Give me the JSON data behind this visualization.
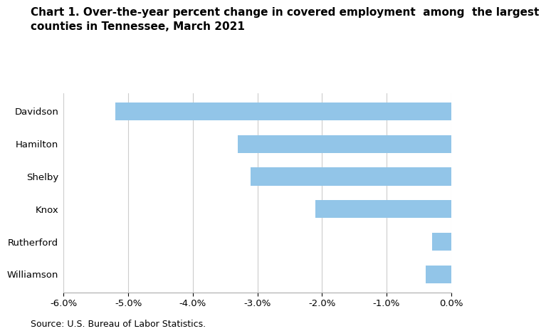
{
  "title": "Chart 1. Over-the-year percent change in covered employment  among  the largest\ncounties in Tennessee, March 2021",
  "categories": [
    "Davidson",
    "Hamilton",
    "Shelby",
    "Knox",
    "Rutherford",
    "Williamson"
  ],
  "values": [
    -5.2,
    -3.3,
    -3.1,
    -2.1,
    -0.3,
    -0.4
  ],
  "bar_color": "#92c5e8",
  "xlim": [
    -6.0,
    0.0
  ],
  "xticks": [
    -6.0,
    -5.0,
    -4.0,
    -3.0,
    -2.0,
    -1.0,
    0.0
  ],
  "source": "Source: U.S. Bureau of Labor Statistics.",
  "title_fontsize": 11,
  "tick_fontsize": 9.5,
  "source_fontsize": 9,
  "background_color": "#ffffff",
  "grid_color": "#cccccc"
}
